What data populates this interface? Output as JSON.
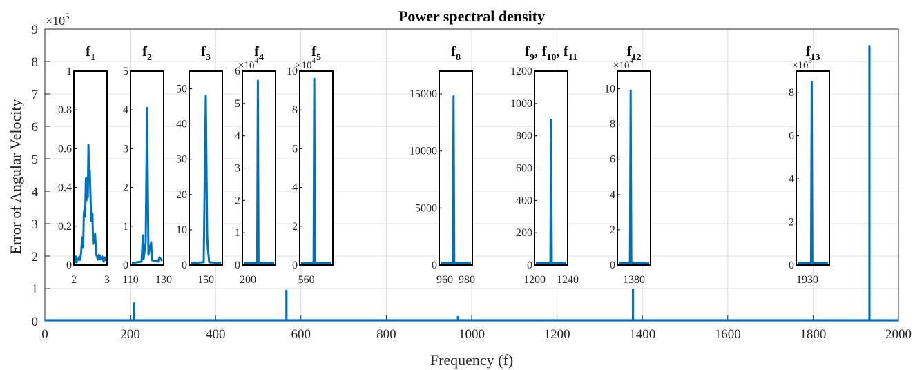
{
  "chart_data": {
    "type": "line",
    "title": "Power spectral density",
    "xlabel": "Frequency (f)",
    "ylabel": "Error of Angular Velocity",
    "xlim": [
      0,
      2000
    ],
    "ylim": [
      0,
      900000
    ],
    "y_exponent_label": "×10^5",
    "grid": true,
    "x_ticks": [
      0,
      200,
      400,
      600,
      800,
      1000,
      1200,
      1400,
      1600,
      1800,
      2000
    ],
    "x_tick_labels": [
      "0",
      "200",
      "400",
      "600",
      "800",
      "1000",
      "1200",
      "1400",
      "1600",
      "1800",
      "2000"
    ],
    "y_ticks": [
      0,
      100000,
      200000,
      300000,
      400000,
      500000,
      600000,
      700000,
      800000,
      900000
    ],
    "y_tick_labels": [
      "0",
      "1",
      "2",
      "3",
      "4",
      "5",
      "6",
      "7",
      "8",
      "9"
    ],
    "series": [
      {
        "color": "#0072bd",
        "peaks": [
          {
            "x": 209,
            "y": 57000
          },
          {
            "x": 566,
            "y": 96000
          },
          {
            "x": 968,
            "y": 14800
          },
          {
            "x": 1378,
            "y": 99000
          },
          {
            "x": 1932,
            "y": 850000
          }
        ]
      }
    ],
    "insets": [
      {
        "label": "f",
        "sub": "1",
        "xlim": [
          2,
          3
        ],
        "ylim": [
          0,
          1
        ],
        "x_ticks": [
          2,
          3
        ],
        "x_tick_labels": [
          "2",
          "3"
        ],
        "y_ticks": [
          0,
          0.2,
          0.4,
          0.6,
          0.8,
          1
        ],
        "y_tick_labels": [
          "0",
          "0.2",
          "0.4",
          "0.6",
          "0.8",
          "1"
        ],
        "exponent": "",
        "peak": {
          "x": 2.45,
          "y": 0.62
        }
      },
      {
        "label": "f",
        "sub": "2",
        "xlim": [
          110,
          130
        ],
        "ylim": [
          0,
          5
        ],
        "x_ticks": [
          110,
          130
        ],
        "x_tick_labels": [
          "110",
          "130"
        ],
        "y_ticks": [
          0,
          1,
          2,
          3,
          4,
          5
        ],
        "y_tick_labels": [
          "0",
          "1",
          "2",
          "3",
          "4",
          "5"
        ],
        "exponent": "",
        "peak": {
          "x": 120,
          "y": 4.05
        }
      },
      {
        "label": "f",
        "sub": "3",
        "xlim": [
          140,
          160
        ],
        "ylim": [
          0,
          55
        ],
        "x_ticks": [
          150
        ],
        "x_tick_labels": [
          "150"
        ],
        "y_ticks": [
          0,
          10,
          20,
          30,
          40,
          50
        ],
        "y_tick_labels": [
          "0",
          "10",
          "20",
          "30",
          "40",
          "50"
        ],
        "exponent": "",
        "peak": {
          "x": 150,
          "y": 48
        }
      },
      {
        "label": "f",
        "sub": "4",
        "xlim": [
          195,
          225
        ],
        "ylim": [
          0,
          60000
        ],
        "x_ticks": [
          200
        ],
        "x_tick_labels": [
          "200"
        ],
        "y_ticks": [
          0,
          10000,
          20000,
          30000,
          40000,
          50000,
          60000
        ],
        "y_tick_labels": [
          "0",
          "1",
          "2",
          "3",
          "4",
          "5",
          "6"
        ],
        "exponent": "×10^4",
        "peak": {
          "x": 209,
          "y": 57000
        }
      },
      {
        "label": "f",
        "sub": "5",
        "xlim": [
          555,
          580
        ],
        "ylim": [
          0,
          100000
        ],
        "x_ticks": [
          560
        ],
        "x_tick_labels": [
          "560"
        ],
        "y_ticks": [
          0,
          20000,
          40000,
          60000,
          80000,
          100000
        ],
        "y_tick_labels": [
          "0",
          "2",
          "4",
          "6",
          "8",
          "10"
        ],
        "exponent": "×10^4",
        "peak": {
          "x": 566,
          "y": 96000
        }
      },
      {
        "label": "f",
        "sub": "8",
        "xlim": [
          955,
          985
        ],
        "ylim": [
          0,
          17000
        ],
        "x_ticks": [
          960,
          980
        ],
        "x_tick_labels": [
          "960",
          "980"
        ],
        "y_ticks": [
          0,
          5000,
          10000,
          15000
        ],
        "y_tick_labels": [
          "0",
          "5000",
          "10000",
          "15000"
        ],
        "exponent": "",
        "peak": {
          "x": 968,
          "y": 14800
        }
      },
      {
        "label": "f9, f10, f11",
        "sub": "",
        "xlim": [
          1200,
          1240
        ],
        "ylim": [
          0,
          1200
        ],
        "x_ticks": [
          1200,
          1240
        ],
        "x_tick_labels": [
          "1200",
          "1240"
        ],
        "y_ticks": [
          0,
          200,
          400,
          600,
          800,
          1000,
          1200
        ],
        "y_tick_labels": [
          "0",
          "200",
          "400",
          "600",
          "800",
          "1000",
          "1200"
        ],
        "exponent": "",
        "peak": {
          "x": 1220,
          "y": 900
        }
      },
      {
        "label": "f",
        "sub": "12",
        "xlim": [
          1370,
          1390
        ],
        "ylim": [
          0,
          110000
        ],
        "x_ticks": [
          1380
        ],
        "x_tick_labels": [
          "1380"
        ],
        "y_ticks": [
          0,
          20000,
          40000,
          60000,
          80000,
          100000
        ],
        "y_tick_labels": [
          "0",
          "2",
          "4",
          "6",
          "8",
          "10"
        ],
        "exponent": "×10^4",
        "peak": {
          "x": 1378,
          "y": 99000
        }
      },
      {
        "label": "f",
        "sub": "13",
        "xlim": [
          1925,
          1940
        ],
        "ylim": [
          0,
          900000
        ],
        "x_ticks": [
          1930
        ],
        "x_tick_labels": [
          "1930"
        ],
        "y_ticks": [
          0,
          200000,
          400000,
          600000,
          800000
        ],
        "y_tick_labels": [
          "0",
          "2",
          "4",
          "6",
          "8"
        ],
        "exponent": "×10^5",
        "peak": {
          "x": 1932,
          "y": 850000
        }
      }
    ]
  }
}
